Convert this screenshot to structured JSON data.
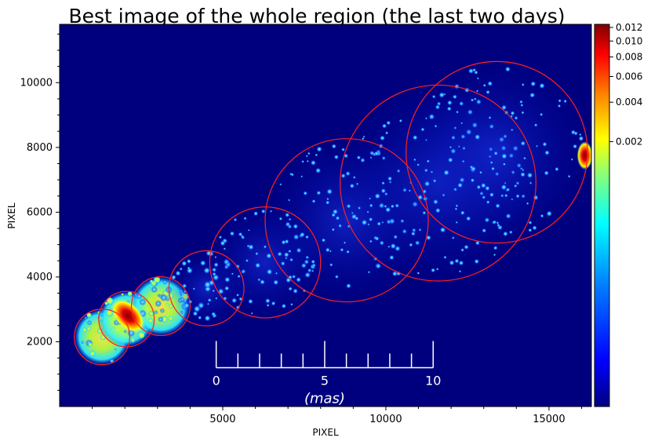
{
  "chart_data": {
    "type": "heatmap",
    "title": "Best image of the whole region (the last two days)",
    "xlabel": "PIXEL",
    "ylabel": "PIXEL",
    "xlim": [
      0,
      16300
    ],
    "ylim": [
      0,
      11800
    ],
    "x_ticks": [
      5000,
      10000,
      15000
    ],
    "y_ticks": [
      2000,
      4000,
      6000,
      8000,
      10000
    ],
    "colormap": "jet",
    "background_color": "#00007f",
    "colorbar": {
      "scale": "nonlinear",
      "range": [
        0,
        0.0125
      ],
      "ticks": [
        0.002,
        0.004,
        0.006,
        0.008,
        0.01,
        0.012
      ],
      "tick_labels": [
        "0.002",
        "0.004",
        "0.006",
        "0.008",
        "0.010",
        "0.012"
      ]
    },
    "circles": [
      {
        "cx": 1300,
        "cy": 2150,
        "r": 850,
        "color": "#ff2020"
      },
      {
        "cx": 2050,
        "cy": 2700,
        "r": 850,
        "color": "#ff2020"
      },
      {
        "cx": 3100,
        "cy": 3100,
        "r": 900,
        "color": "#ff2020"
      },
      {
        "cx": 4500,
        "cy": 3650,
        "r": 1150,
        "color": "#ff2020"
      },
      {
        "cx": 6300,
        "cy": 4450,
        "r": 1700,
        "color": "#ff2020"
      },
      {
        "cx": 8800,
        "cy": 5750,
        "r": 2500,
        "color": "#ff2020"
      },
      {
        "cx": 11600,
        "cy": 6900,
        "r": 3000,
        "color": "#ff2020"
      },
      {
        "cx": 13400,
        "cy": 7850,
        "r": 2780,
        "color": "#ff2020"
      }
    ],
    "bright_sources": [
      {
        "x": 2100,
        "y": 2800,
        "level": 0.012
      },
      {
        "x": 16100,
        "y": 7750,
        "level": 0.012
      }
    ],
    "scale_bar": {
      "tick_labels": [
        "0",
        "5",
        "10"
      ],
      "unit": "(mas)",
      "x_start": 4800,
      "x_end": 11450,
      "y": 1200,
      "minor_divisions": 10
    }
  }
}
